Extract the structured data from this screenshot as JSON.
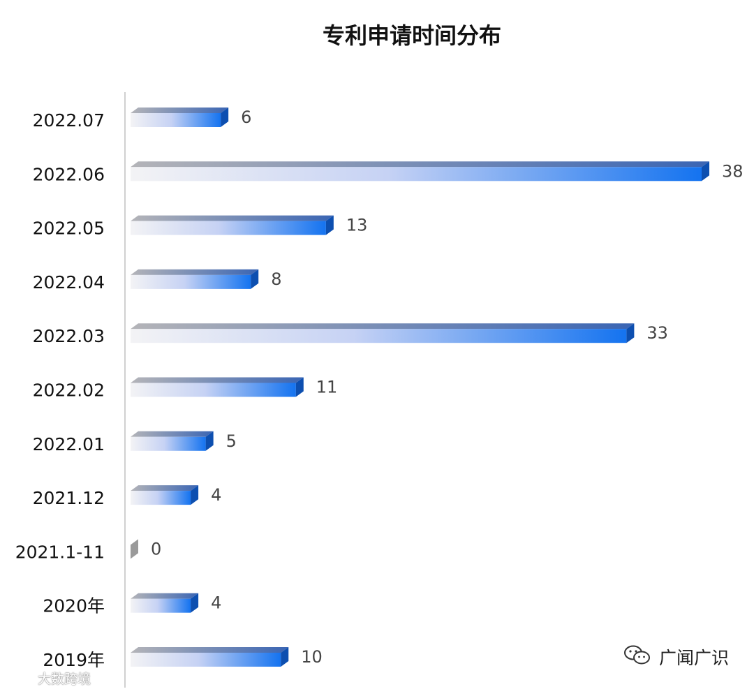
{
  "chart_data": {
    "type": "bar",
    "orientation": "horizontal",
    "title": "专利申请时间分布",
    "xlabel": "",
    "ylabel": "",
    "categories": [
      "2022.07",
      "2022.06",
      "2022.05",
      "2022.04",
      "2022.03",
      "2022.02",
      "2022.01",
      "2021.12",
      "2021.1-11",
      "2020年",
      "2019年"
    ],
    "values": [
      6,
      38,
      13,
      8,
      33,
      11,
      5,
      4,
      0,
      4,
      10
    ],
    "xlim": [
      0,
      38
    ],
    "grid": false,
    "legend": "none",
    "bar_style": "3d-gradient",
    "colors": {
      "bar_start": "#f3f3f5",
      "bar_end": "#1473f0",
      "bar_top_start": "#b4b4b8",
      "bar_top_end": "#3a65b4",
      "bar_side": "#0d4fb0",
      "zero_bar": "#9a9a9a",
      "axis": "#d0d0d0"
    }
  },
  "watermarks": {
    "right_text": "广闻广识",
    "right_icon": "wechat-icon",
    "left_text": "大数跨境",
    "left_icon": "weibo-icon"
  }
}
